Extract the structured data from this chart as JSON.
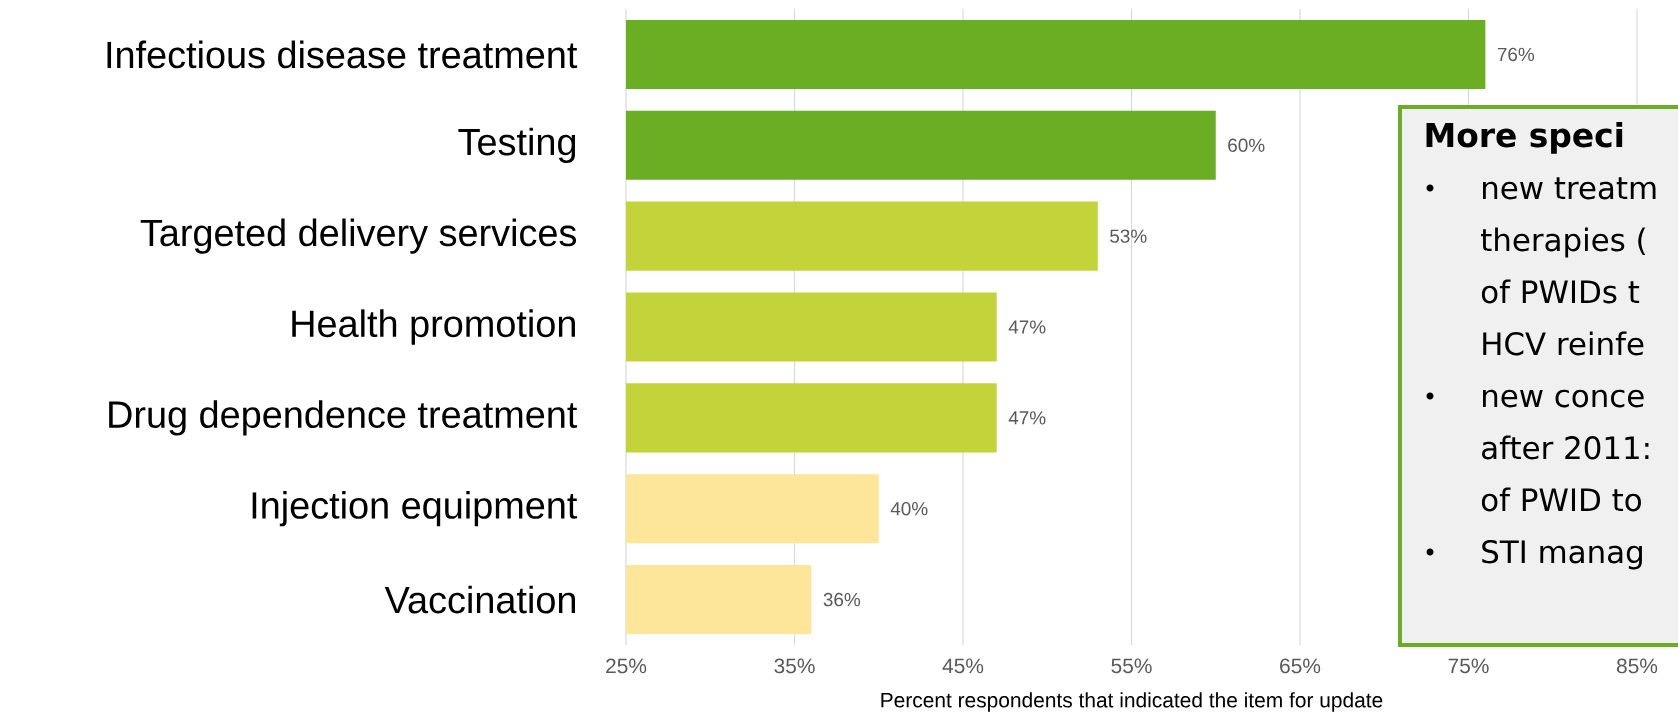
{
  "chart_data": {
    "type": "bar",
    "orientation": "horizontal",
    "categories": [
      "Infectious disease treatment",
      "Testing",
      "Targeted delivery services",
      "Health promotion",
      "Drug dependence treatment",
      "Injection equipment",
      "Vaccination"
    ],
    "values": [
      76,
      60,
      53,
      47,
      47,
      40,
      36
    ],
    "value_labels": [
      "76%",
      "60%",
      "53%",
      "47%",
      "47%",
      "40%",
      "36%"
    ],
    "colors": [
      "#6aaf23",
      "#6aaf23",
      "#c3d43a",
      "#c3d43a",
      "#c3d43a",
      "#fde59a",
      "#fde59a"
    ],
    "xlabel": "Percent respondents that indicated the item for update",
    "xlim": [
      25,
      85
    ],
    "xticks": [
      {
        "value": 25,
        "label": "25%"
      },
      {
        "value": 35,
        "label": "35%"
      },
      {
        "value": 45,
        "label": "45%"
      },
      {
        "value": 55,
        "label": "55%"
      },
      {
        "value": 65,
        "label": "65%"
      },
      {
        "value": 75,
        "label": "75%"
      },
      {
        "value": 85,
        "label": "85%"
      }
    ],
    "grid": "x",
    "annotations": [
      "More speci",
      "new treatm",
      "therapies (",
      "of PWIDs t",
      "HCV reinfe",
      "new conce",
      "after 2011:",
      "of PWID to",
      "STI manag"
    ]
  }
}
